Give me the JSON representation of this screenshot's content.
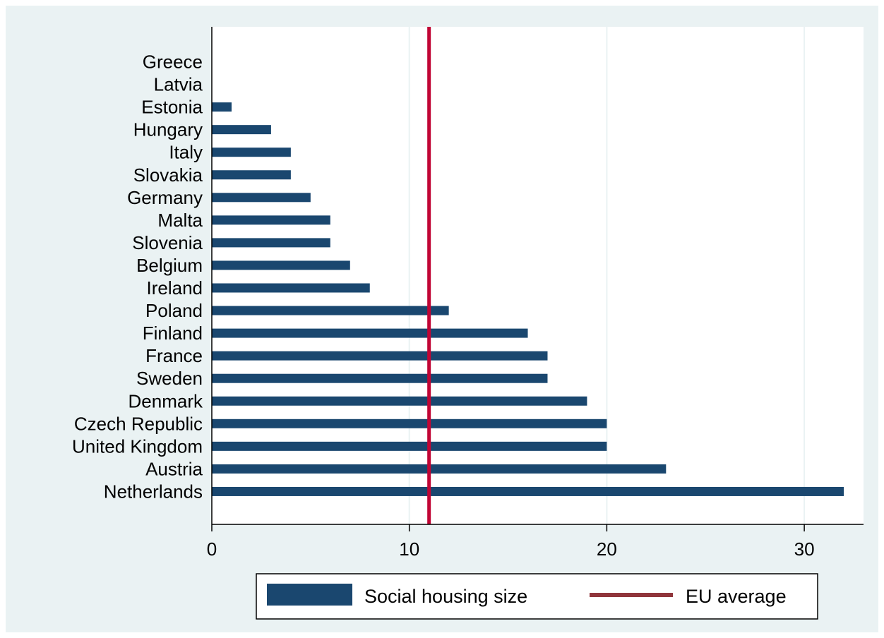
{
  "chart_data": {
    "type": "bar",
    "orientation": "horizontal",
    "categories": [
      "Greece",
      "Latvia",
      "Estonia",
      "Hungary",
      "Italy",
      "Slovakia",
      "Germany",
      "Malta",
      "Slovenia",
      "Belgium",
      "Ireland",
      "Poland",
      "Finland",
      "France",
      "Sweden",
      "Denmark",
      "Czech Republic",
      "United Kingdom",
      "Austria",
      "Netherlands"
    ],
    "series": [
      {
        "name": "Social housing size",
        "values": [
          0,
          0,
          1,
          3,
          4,
          4,
          5,
          6,
          6,
          7,
          8,
          12,
          16,
          17,
          17,
          19,
          20,
          20,
          23,
          32
        ],
        "color": "#1a476f"
      }
    ],
    "reference_line": {
      "name": "EU average",
      "value": 11,
      "color": "#c10534"
    },
    "legend_line_color": "#90353b",
    "xlim": [
      0,
      33
    ],
    "xticks": [
      "0",
      "10",
      "20",
      "30"
    ],
    "xtick_values": [
      0,
      10,
      20,
      30
    ],
    "grid": true,
    "legend_position": "bottom",
    "title": "",
    "xlabel": "",
    "ylabel": "",
    "colors": {
      "outer_background": "#eaf2f3",
      "plot_background": "#ffffff",
      "grid": "#eaf2f3"
    }
  }
}
